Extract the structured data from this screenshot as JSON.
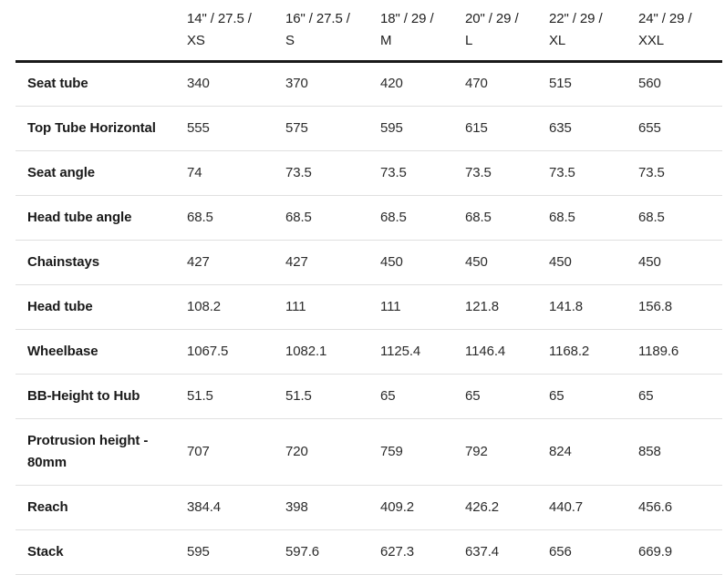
{
  "chart_data": {
    "type": "table",
    "columns": [
      {
        "dimensions": "14\" / 27.5 /",
        "size_code": "XS"
      },
      {
        "dimensions": "16\" / 27.5 /",
        "size_code": "S"
      },
      {
        "dimensions": "18\" / 29 /",
        "size_code": "M"
      },
      {
        "dimensions": "20\" / 29 /",
        "size_code": "L"
      },
      {
        "dimensions": "22\" / 29 /",
        "size_code": "XL"
      },
      {
        "dimensions": "24\" / 29 /",
        "size_code": "XXL"
      }
    ],
    "rows": [
      {
        "label": "Seat tube",
        "values": [
          "340",
          "370",
          "420",
          "470",
          "515",
          "560"
        ]
      },
      {
        "label": "Top Tube Horizontal",
        "values": [
          "555",
          "575",
          "595",
          "615",
          "635",
          "655"
        ]
      },
      {
        "label": "Seat angle",
        "values": [
          "74",
          "73.5",
          "73.5",
          "73.5",
          "73.5",
          "73.5"
        ]
      },
      {
        "label": "Head tube angle",
        "values": [
          "68.5",
          "68.5",
          "68.5",
          "68.5",
          "68.5",
          "68.5"
        ]
      },
      {
        "label": "Chainstays",
        "values": [
          "427",
          "427",
          "450",
          "450",
          "450",
          "450"
        ]
      },
      {
        "label": "Head tube",
        "values": [
          "108.2",
          "111",
          "111",
          "121.8",
          "141.8",
          "156.8"
        ]
      },
      {
        "label": "Wheelbase",
        "values": [
          "1067.5",
          "1082.1",
          "1125.4",
          "1146.4",
          "1168.2",
          "1189.6"
        ]
      },
      {
        "label": "BB-Height to Hub",
        "values": [
          "51.5",
          "51.5",
          "65",
          "65",
          "65",
          "65"
        ]
      },
      {
        "label": "Protrusion height - 80mm",
        "values": [
          "707",
          "720",
          "759",
          "792",
          "824",
          "858"
        ]
      },
      {
        "label": "Reach",
        "values": [
          "384.4",
          "398",
          "409.2",
          "426.2",
          "440.7",
          "456.6"
        ]
      },
      {
        "label": "Stack",
        "values": [
          "595",
          "597.6",
          "627.3",
          "637.4",
          "656",
          "669.9"
        ]
      }
    ],
    "colors": {
      "header_rule": "#1a1a1a",
      "row_rule": "#e0e0e0",
      "label_text": "#1a1a1a",
      "value_text": "#2b2b2b"
    },
    "layout": {
      "grid": "horizontal-rules-only",
      "header_position": "top"
    }
  }
}
